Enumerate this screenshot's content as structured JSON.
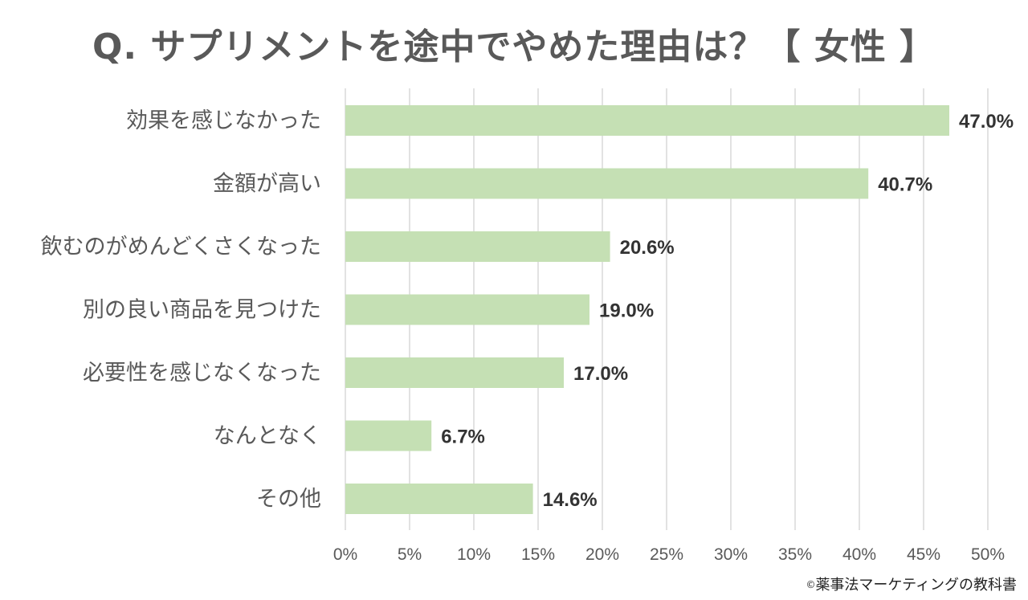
{
  "chart_data": {
    "type": "bar",
    "orientation": "horizontal",
    "title": "Q. サプリメントを途中でやめた理由は？【 女性 】",
    "categories": [
      "効果を感じなかった",
      "金額が高い",
      "飲むのがめんどくさくなった",
      "別の良い商品を見つけた",
      "必要性を感じなくなった",
      "なんとなく",
      "その他"
    ],
    "values": [
      47.0,
      40.7,
      20.6,
      19.0,
      17.0,
      6.7,
      14.6
    ],
    "value_labels": [
      "47.0%",
      "40.7%",
      "20.6%",
      "19.0%",
      "17.0%",
      "6.7%",
      "14.6%"
    ],
    "xlim": [
      0,
      50
    ],
    "x_ticks": [
      0,
      5,
      10,
      15,
      20,
      25,
      30,
      35,
      40,
      45,
      50
    ],
    "x_tick_labels": [
      "0%",
      "5%",
      "10%",
      "15%",
      "20%",
      "25%",
      "30%",
      "35%",
      "40%",
      "45%",
      "50%"
    ],
    "xlabel": "",
    "ylabel": "",
    "grid": true,
    "legend": "none"
  },
  "colors": {
    "bar": "#c5e0b4",
    "grid": "#d9d9d9",
    "title": "#595959",
    "category_text": "#595959",
    "value_text": "#333333",
    "tick_text": "#595959"
  },
  "footer": {
    "symbol": "©",
    "credit": "薬事法マーケティングの教科書"
  }
}
